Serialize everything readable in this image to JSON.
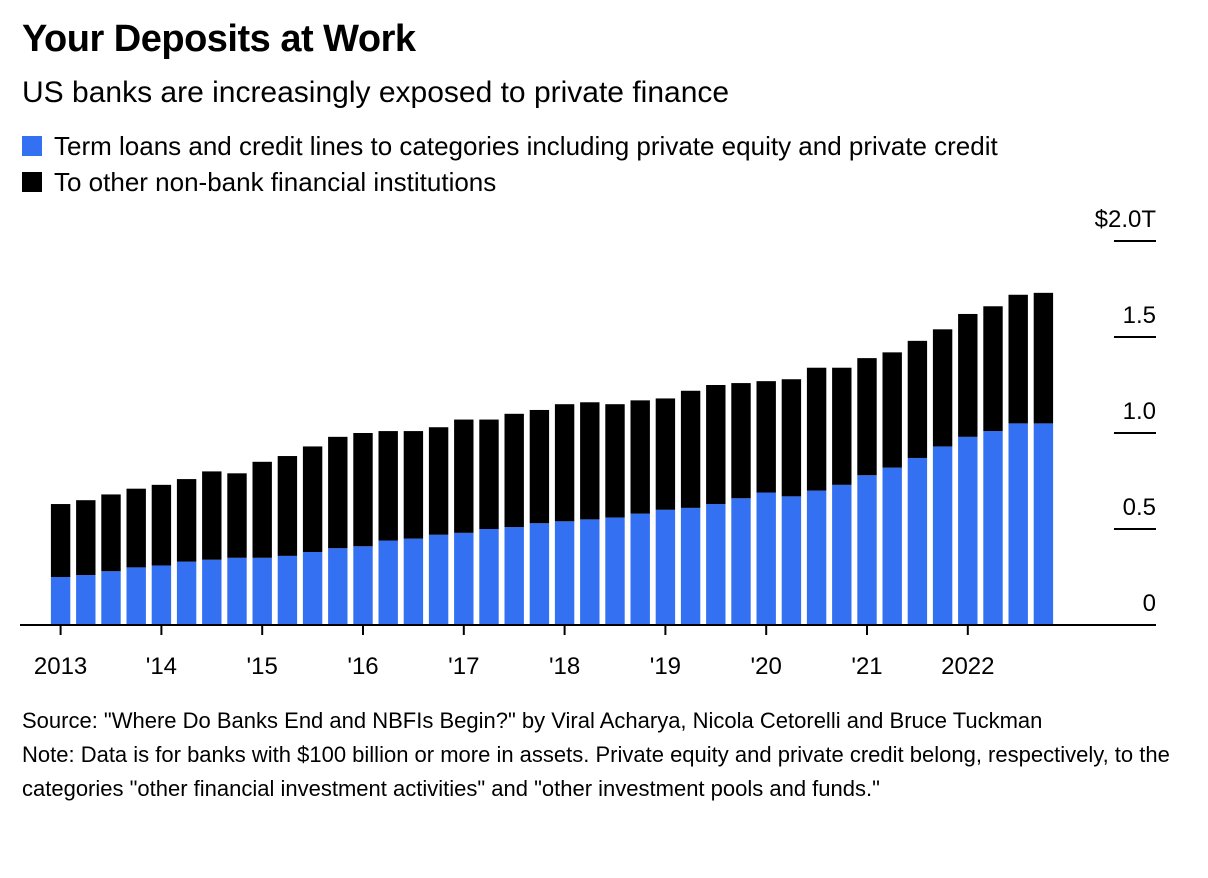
{
  "header": {
    "title": "Your Deposits at Work",
    "subtitle": "US banks are increasingly exposed to private finance"
  },
  "legend": {
    "items": [
      {
        "label": "Term loans and credit lines to categories including private equity and private credit",
        "color": "#3371f2"
      },
      {
        "label": "To other non-bank financial institutions",
        "color": "#000000"
      }
    ]
  },
  "footer": {
    "source": "Source: \"Where Do Banks End and NBFIs Begin?\" by Viral Acharya, Nicola Cetorelli and Bruce Tuckman",
    "note": "Note: Data is for banks with $100 billion or more in assets. Private equity and private credit belong, respectively, to the categories \"other financial investment activities\" and \"other investment pools and funds.\""
  },
  "chart_data": {
    "type": "bar",
    "stacked": true,
    "unit": "$ trillions",
    "ylim": [
      0,
      2.0
    ],
    "yticks": [
      {
        "value": 0,
        "label": "0"
      },
      {
        "value": 0.5,
        "label": "0.5"
      },
      {
        "value": 1.0,
        "label": "1.0"
      },
      {
        "value": 1.5,
        "label": "1.5"
      },
      {
        "value": 2.0,
        "label": "$2.0T"
      }
    ],
    "xticks": [
      {
        "index": 0,
        "label": "2013"
      },
      {
        "index": 4,
        "label": "'14"
      },
      {
        "index": 8,
        "label": "'15"
      },
      {
        "index": 12,
        "label": "'16"
      },
      {
        "index": 16,
        "label": "'17"
      },
      {
        "index": 20,
        "label": "'18"
      },
      {
        "index": 24,
        "label": "'19"
      },
      {
        "index": 28,
        "label": "'20"
      },
      {
        "index": 32,
        "label": "'21"
      },
      {
        "index": 36,
        "label": "2022"
      }
    ],
    "categories": [
      "2013 Q1",
      "2013 Q2",
      "2013 Q3",
      "2013 Q4",
      "2014 Q1",
      "2014 Q2",
      "2014 Q3",
      "2014 Q4",
      "2015 Q1",
      "2015 Q2",
      "2015 Q3",
      "2015 Q4",
      "2016 Q1",
      "2016 Q2",
      "2016 Q3",
      "2016 Q4",
      "2017 Q1",
      "2017 Q2",
      "2017 Q3",
      "2017 Q4",
      "2018 Q1",
      "2018 Q2",
      "2018 Q3",
      "2018 Q4",
      "2019 Q1",
      "2019 Q2",
      "2019 Q3",
      "2019 Q4",
      "2020 Q1",
      "2020 Q2",
      "2020 Q3",
      "2020 Q4",
      "2021 Q1",
      "2021 Q2",
      "2021 Q3",
      "2021 Q4",
      "2022 Q1",
      "2022 Q2",
      "2022 Q3",
      "2022 Q4"
    ],
    "series": [
      {
        "name": "Term loans and credit lines to categories including private equity and private credit",
        "color": "#3371f2",
        "values": [
          0.25,
          0.26,
          0.28,
          0.3,
          0.31,
          0.33,
          0.34,
          0.35,
          0.35,
          0.36,
          0.38,
          0.4,
          0.41,
          0.44,
          0.45,
          0.47,
          0.48,
          0.5,
          0.51,
          0.53,
          0.54,
          0.55,
          0.56,
          0.58,
          0.6,
          0.61,
          0.63,
          0.66,
          0.69,
          0.67,
          0.7,
          0.73,
          0.78,
          0.82,
          0.87,
          0.93,
          0.98,
          1.01,
          1.05,
          1.05
        ]
      },
      {
        "name": "To other non-bank financial institutions",
        "color": "#000000",
        "values": [
          0.38,
          0.39,
          0.4,
          0.41,
          0.42,
          0.43,
          0.46,
          0.44,
          0.5,
          0.52,
          0.55,
          0.58,
          0.59,
          0.57,
          0.56,
          0.56,
          0.59,
          0.57,
          0.59,
          0.59,
          0.61,
          0.61,
          0.59,
          0.59,
          0.58,
          0.61,
          0.62,
          0.6,
          0.58,
          0.61,
          0.64,
          0.61,
          0.61,
          0.6,
          0.61,
          0.61,
          0.64,
          0.65,
          0.67,
          0.68
        ]
      }
    ]
  }
}
